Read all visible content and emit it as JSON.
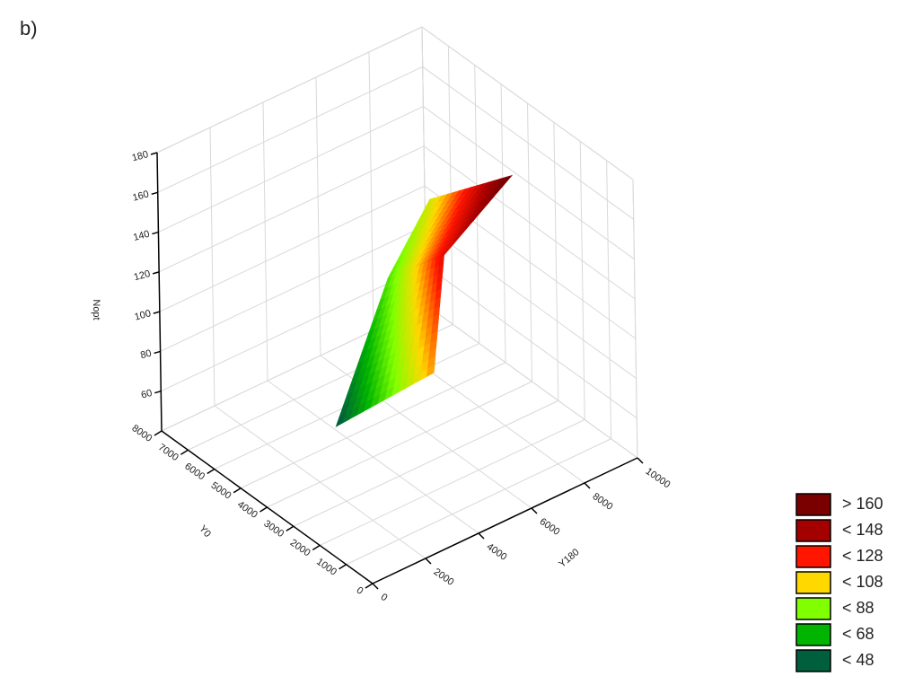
{
  "chart_data": {
    "type": "surface3d",
    "title": "b)",
    "x_label": "Y0",
    "y_label": "Y180",
    "z_label": "Nopt",
    "xlim": [
      0,
      8000
    ],
    "xticks": [
      0,
      1000,
      2000,
      3000,
      4000,
      5000,
      6000,
      7000,
      8000
    ],
    "ylim": [
      0,
      10000
    ],
    "yticks": [
      0,
      2000,
      4000,
      6000,
      8000,
      10000
    ],
    "zlim": [
      40,
      180
    ],
    "zticks": [
      60,
      80,
      100,
      120,
      140,
      160,
      180
    ],
    "surface": {
      "x": [
        [
          5200,
          6900,
          7500
        ],
        [
          1000,
          3300,
          2900
        ]
      ],
      "y": [
        [
          3800,
          7500,
          9700
        ],
        [
          3400,
          6100,
          8300
        ]
      ],
      "values": [
        [
          45,
          80,
          100
        ],
        [
          115,
          135,
          165
        ]
      ]
    },
    "legend": [
      {
        "value": 160,
        "label": "> 160",
        "color": "#7a0000"
      },
      {
        "value": 148,
        "label": "< 148",
        "color": "#a50000"
      },
      {
        "value": 128,
        "label": "< 128",
        "color": "#ff1500"
      },
      {
        "value": 108,
        "label": "< 108",
        "color": "#ffd800"
      },
      {
        "value": 88,
        "label": "< 88",
        "color": "#80ff00"
      },
      {
        "value": 68,
        "label": "< 68",
        "color": "#00b400"
      },
      {
        "value": 48,
        "label": "< 48",
        "color": "#005f3c"
      }
    ],
    "grid": true
  }
}
